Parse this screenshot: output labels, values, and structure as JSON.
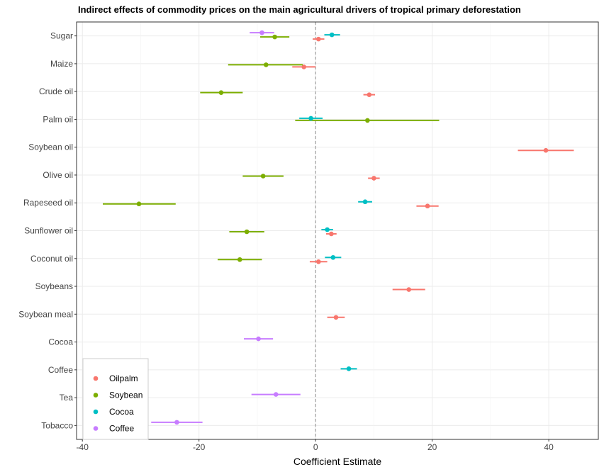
{
  "chart_data": {
    "type": "scatter",
    "title": "Indirect effects of commodity prices on the main agricultural drivers of tropical primary deforestation",
    "xlabel": "Coefficient Estimate",
    "ylabel": "",
    "xlim": [
      -41,
      48.5
    ],
    "x_ticks": [
      -40,
      -20,
      0,
      20,
      40
    ],
    "x_tick_labels": [
      "-40",
      "-20",
      "0",
      "20",
      "40"
    ],
    "categories": [
      "Sugar",
      "Maize",
      "Crude oil",
      "Palm oil",
      "Soybean oil",
      "Olive oil",
      "Rapeseed oil",
      "Sunflower oil",
      "Coconut oil",
      "Soybeans",
      "Soybean meal",
      "Cocoa",
      "Coffee",
      "Tea",
      "Tobacco"
    ],
    "reference_line_x": 0,
    "grid": true,
    "legend": {
      "position": "bottom-left",
      "items": [
        "Oilpalm",
        "Soybean",
        "Cocoa",
        "Coffee"
      ]
    },
    "colors": {
      "Oilpalm": "#F8766D",
      "Soybean": "#7CAE00",
      "Cocoa": "#00BFC4",
      "Coffee": "#C77CFF"
    },
    "series": [
      {
        "name": "Oilpalm",
        "color": "#F8766D",
        "points": [
          {
            "category": "Sugar",
            "estimate": 0.5,
            "low": -0.5,
            "high": 1.5
          },
          {
            "category": "Maize",
            "estimate": -2,
            "low": -4,
            "high": 0
          },
          {
            "category": "Crude oil",
            "estimate": 9.2,
            "low": 8.2,
            "high": 10.2
          },
          {
            "category": "Soybean oil",
            "estimate": 39.5,
            "low": 34.7,
            "high": 44.3
          },
          {
            "category": "Olive oil",
            "estimate": 10,
            "low": 9,
            "high": 11
          },
          {
            "category": "Rapeseed oil",
            "estimate": 19.2,
            "low": 17.3,
            "high": 21.1
          },
          {
            "category": "Sunflower oil",
            "estimate": 2.7,
            "low": 1.8,
            "high": 3.6
          },
          {
            "category": "Coconut oil",
            "estimate": 0.5,
            "low": -1,
            "high": 2
          },
          {
            "category": "Soybeans",
            "estimate": 16,
            "low": 13.2,
            "high": 18.8
          },
          {
            "category": "Soybean meal",
            "estimate": 3.5,
            "low": 2,
            "high": 5
          }
        ]
      },
      {
        "name": "Soybean",
        "color": "#7CAE00",
        "points": [
          {
            "category": "Sugar",
            "estimate": -7,
            "low": -9.5,
            "high": -4.5
          },
          {
            "category": "Maize",
            "estimate": -8.5,
            "low": -15,
            "high": -2.2
          },
          {
            "category": "Crude oil",
            "estimate": -16.2,
            "low": -19.8,
            "high": -12.5
          },
          {
            "category": "Palm oil",
            "estimate": 8.9,
            "low": -3.5,
            "high": 21.2
          },
          {
            "category": "Olive oil",
            "estimate": -9,
            "low": -12.5,
            "high": -5.5
          },
          {
            "category": "Rapeseed oil",
            "estimate": -30.3,
            "low": -36.5,
            "high": -24
          },
          {
            "category": "Sunflower oil",
            "estimate": -11.8,
            "low": -14.8,
            "high": -8.8
          },
          {
            "category": "Coconut oil",
            "estimate": -13,
            "low": -16.8,
            "high": -9.2
          }
        ]
      },
      {
        "name": "Cocoa",
        "color": "#00BFC4",
        "points": [
          {
            "category": "Sugar",
            "estimate": 2.8,
            "low": 1.5,
            "high": 4.2
          },
          {
            "category": "Palm oil",
            "estimate": -0.8,
            "low": -2.8,
            "high": 1.2
          },
          {
            "category": "Rapeseed oil",
            "estimate": 8.5,
            "low": 7.3,
            "high": 9.7
          },
          {
            "category": "Sunflower oil",
            "estimate": 2,
            "low": 1,
            "high": 3
          },
          {
            "category": "Coconut oil",
            "estimate": 3,
            "low": 1.6,
            "high": 4.4
          },
          {
            "category": "Coffee",
            "estimate": 5.7,
            "low": 4.3,
            "high": 7.1
          }
        ]
      },
      {
        "name": "Coffee",
        "color": "#C77CFF",
        "points": [
          {
            "category": "Sugar",
            "estimate": -9.2,
            "low": -11.3,
            "high": -7.1
          },
          {
            "category": "Cocoa",
            "estimate": -9.8,
            "low": -12.3,
            "high": -7.3
          },
          {
            "category": "Tea",
            "estimate": -6.8,
            "low": -11,
            "high": -2.6
          },
          {
            "category": "Tobacco",
            "estimate": -23.8,
            "low": -28.2,
            "high": -19.4
          }
        ]
      }
    ]
  }
}
